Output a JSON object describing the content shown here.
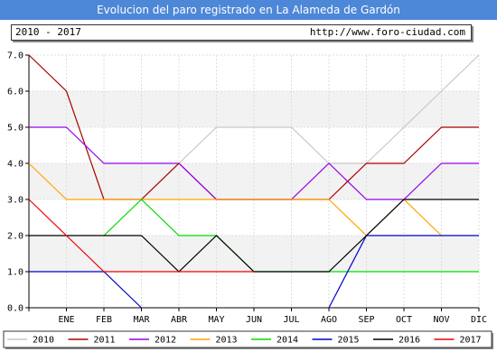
{
  "title": "Evolucion del paro registrado en La Alameda de Gardón",
  "period_label": "2010 - 2017",
  "site_url": "http://www.foro-ciudad.com",
  "chart_data": {
    "type": "line",
    "categories": [
      "",
      "ENE",
      "FEB",
      "MAR",
      "ABR",
      "MAY",
      "JUN",
      "JUL",
      "AGO",
      "SEP",
      "OCT",
      "NOV",
      "DIC"
    ],
    "y_ticks": [
      "0.0",
      "1.0",
      "2.0",
      "3.0",
      "4.0",
      "5.0",
      "6.0",
      "7.0"
    ],
    "ylim": [
      0,
      7
    ],
    "grid": true,
    "legend_position": "bottom",
    "series": [
      {
        "name": "2010",
        "color": "#c8c8c8",
        "values": [
          null,
          null,
          null,
          3,
          4,
          5,
          5,
          5,
          4,
          4,
          5,
          6,
          7
        ]
      },
      {
        "name": "2011",
        "color": "#aa0000",
        "values": [
          7,
          6,
          3,
          3,
          4,
          3,
          3,
          3,
          3,
          4,
          4,
          5,
          5
        ]
      },
      {
        "name": "2012",
        "color": "#9900ee",
        "values": [
          5,
          5,
          4,
          4,
          4,
          3,
          3,
          3,
          4,
          3,
          3,
          4,
          4
        ]
      },
      {
        "name": "2013",
        "color": "#ffa500",
        "values": [
          4,
          3,
          3,
          3,
          3,
          3,
          3,
          3,
          3,
          2,
          3,
          2,
          null
        ]
      },
      {
        "name": "2014",
        "color": "#00dd00",
        "values": [
          null,
          null,
          2,
          3,
          2,
          2,
          1,
          1,
          1,
          1,
          1,
          1,
          1
        ]
      },
      {
        "name": "2015",
        "color": "#0000cc",
        "values": [
          1,
          1,
          1,
          0,
          null,
          null,
          null,
          null,
          0,
          2,
          2,
          2,
          2
        ]
      },
      {
        "name": "2016",
        "color": "#000000",
        "values": [
          2,
          2,
          2,
          2,
          1,
          2,
          1,
          1,
          1,
          2,
          3,
          3,
          3
        ]
      },
      {
        "name": "2017",
        "color": "#ee0000",
        "values": [
          3,
          2,
          1,
          1,
          1,
          1,
          1,
          null,
          null,
          null,
          null,
          null,
          null
        ]
      }
    ]
  }
}
